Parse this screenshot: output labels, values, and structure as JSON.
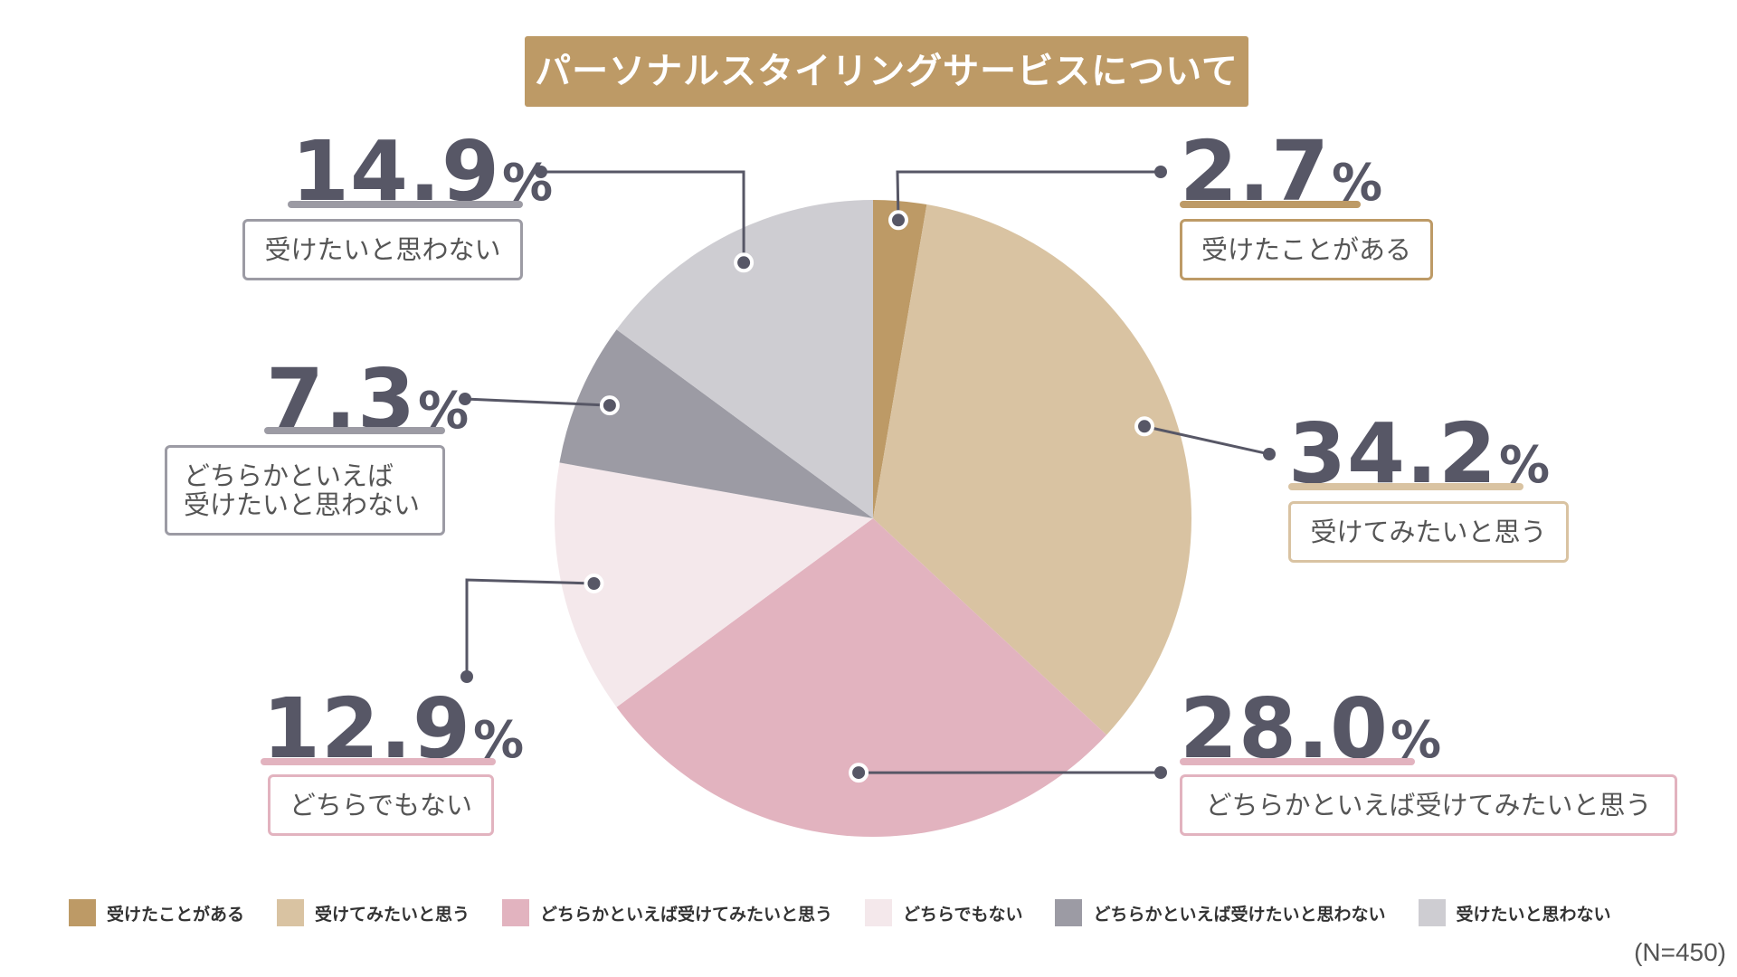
{
  "chart_data": {
    "type": "pie",
    "title": "パーソナルスタイリングサービスについて",
    "unit": "%",
    "note": "(N=450)",
    "slices": [
      {
        "label": "受けたことがある",
        "value": 2.7,
        "value_text": "2.7",
        "color": "#bd9a66"
      },
      {
        "label": "受けてみたいと思う",
        "value": 34.2,
        "value_text": "34.2",
        "color": "#d9c3a2"
      },
      {
        "label": "どちらかといえば受けてみたいと思う",
        "value": 28.0,
        "value_text": "28.0",
        "color": "#e2b3bf"
      },
      {
        "label": "どちらでもない",
        "value": 12.9,
        "value_text": "12.9",
        "color": "#f4e8eb"
      },
      {
        "label": "どちらかといえば受けたいと思わない",
        "value": 7.3,
        "value_text": "7.3",
        "color": "#9c9ba4"
      },
      {
        "label": "受けたいと思わない",
        "value": 14.9,
        "value_text": "14.9",
        "color": "#cecdd2"
      }
    ],
    "callout_labels": [
      "受けたことがある",
      "受けてみたいと思う",
      "どちらかといえば受けてみたいと思う",
      "どちらでもない",
      "どちらかといえば\n受けたいと思わない",
      "受けたいと思わない"
    ],
    "legend_position": "bottom"
  },
  "colors": {
    "connector": "#575766",
    "text_dark": "#575766"
  }
}
